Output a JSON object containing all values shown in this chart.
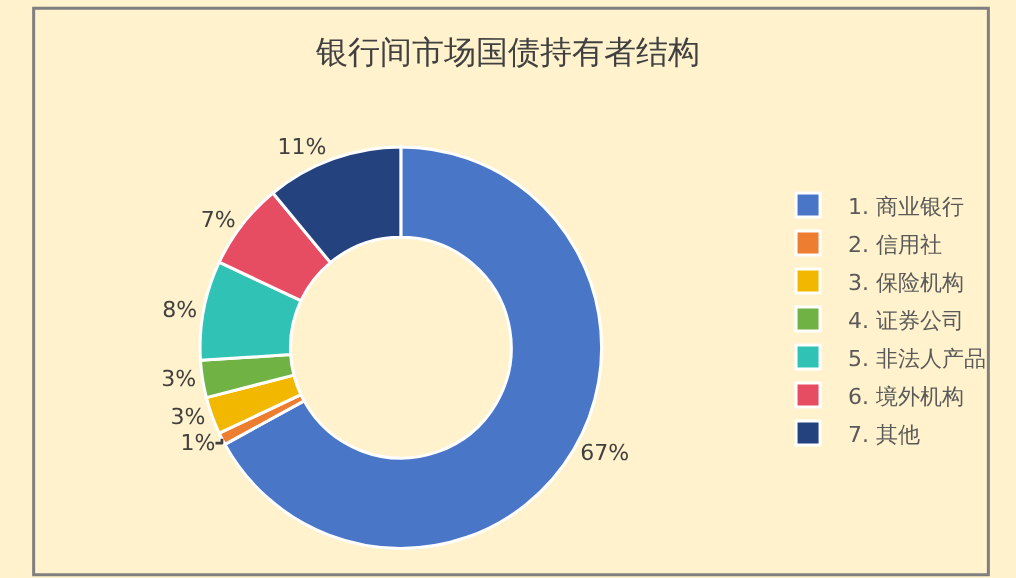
{
  "chart_data": {
    "type": "donut",
    "title": "银行间市场国债持有者结构",
    "categories": [
      "1. 商业银行",
      "2. 信用社",
      "3. 保险机构",
      "4. 证券公司",
      "5. 非法人产品",
      "6. 境外机构",
      "7. 其他"
    ],
    "values": [
      67,
      1,
      3,
      3,
      8,
      7,
      11
    ],
    "colors": [
      "#4a76c8",
      "#ed7d31",
      "#f2b800",
      "#70b244",
      "#30c2b4",
      "#e64d62",
      "#24427e"
    ],
    "value_labels": [
      "67%",
      "1%",
      "3%",
      "3%",
      "8%",
      "7%",
      "11%"
    ],
    "legend": "right"
  }
}
